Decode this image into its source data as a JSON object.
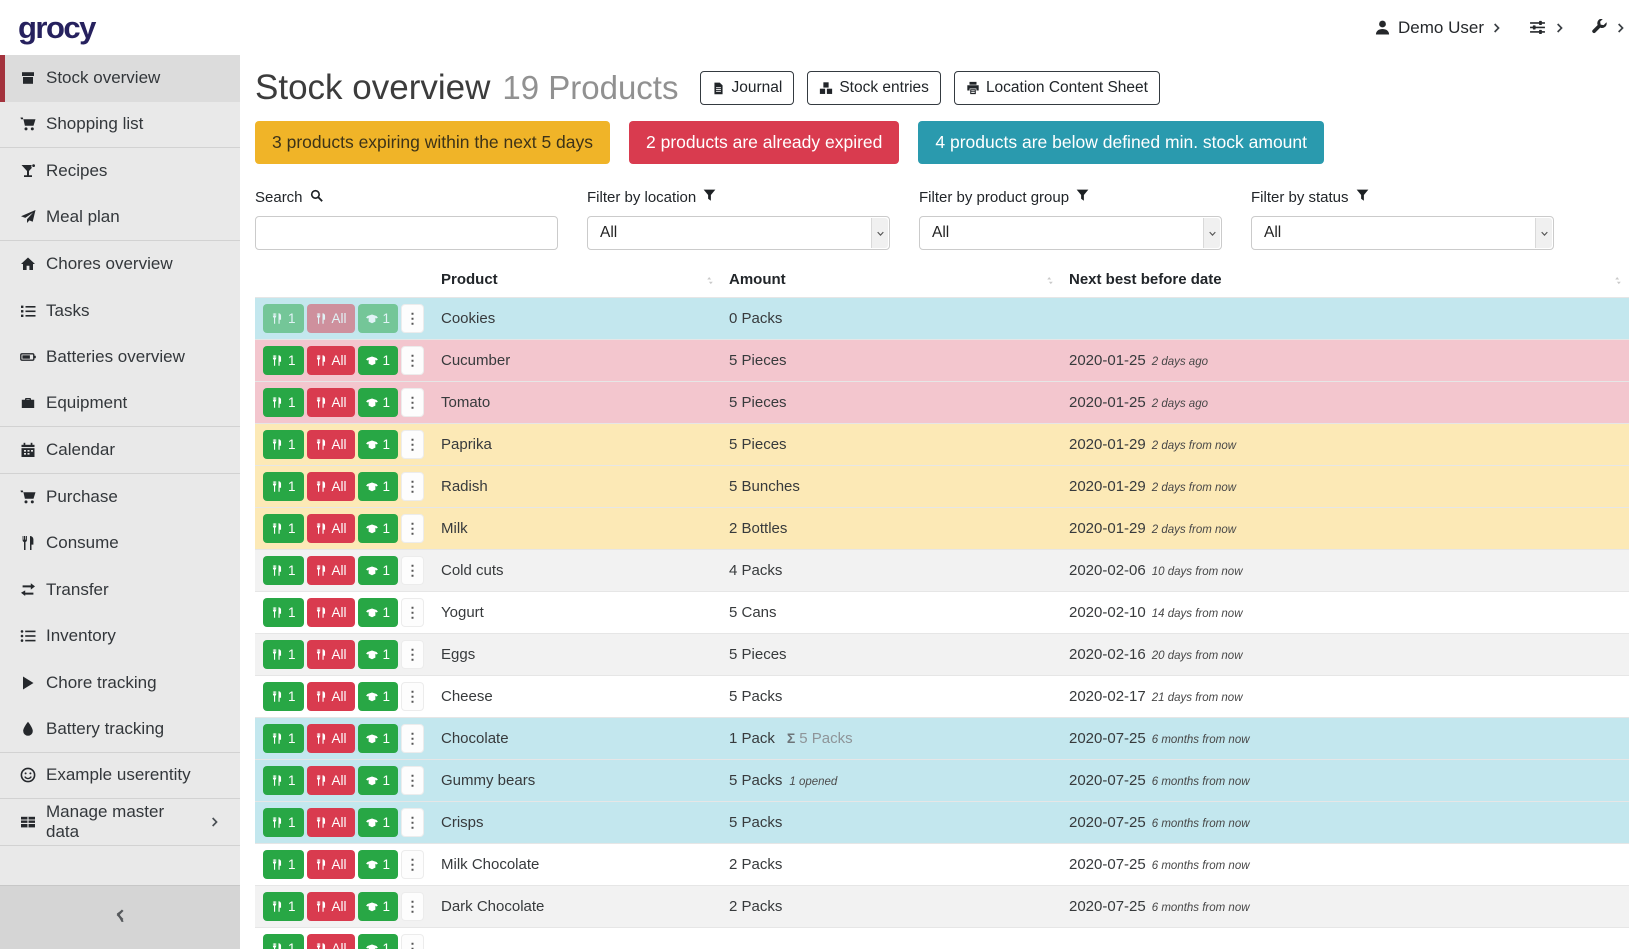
{
  "navbar": {
    "brand": "grocy",
    "user_label": "Demo User"
  },
  "sidebar": {
    "items": [
      {
        "label": "Stock overview",
        "icon": "stock-box",
        "active": true
      },
      {
        "label": "Shopping list",
        "icon": "cart",
        "divider_after": true
      },
      {
        "label": "Recipes",
        "icon": "cocktail"
      },
      {
        "label": "Meal plan",
        "icon": "paper-plane",
        "divider_after": true
      },
      {
        "label": "Chores overview",
        "icon": "home"
      },
      {
        "label": "Tasks",
        "icon": "task-list"
      },
      {
        "label": "Batteries overview",
        "icon": "battery"
      },
      {
        "label": "Equipment",
        "icon": "toolbox",
        "divider_after": true
      },
      {
        "label": "Calendar",
        "icon": "calendar",
        "divider_after": true
      },
      {
        "label": "Purchase",
        "icon": "cart"
      },
      {
        "label": "Consume",
        "icon": "utensils"
      },
      {
        "label": "Transfer",
        "icon": "transfer"
      },
      {
        "label": "Inventory",
        "icon": "list"
      },
      {
        "label": "Chore tracking",
        "icon": "play"
      },
      {
        "label": "Battery tracking",
        "icon": "droplet",
        "divider_after": true
      },
      {
        "label": "Example userentity",
        "icon": "smiley",
        "divider_after": true
      },
      {
        "label": "Manage master data",
        "icon": "table",
        "chevron": true,
        "divider_after": true
      }
    ]
  },
  "page": {
    "title": "Stock overview",
    "subtitle": "19 Products",
    "buttons": [
      {
        "label": "Journal",
        "icon": "file"
      },
      {
        "label": "Stock entries",
        "icon": "boxes"
      },
      {
        "label": "Location Content Sheet",
        "icon": "print"
      }
    ]
  },
  "banners": [
    {
      "text": "3 products expiring within the next 5 days",
      "bg": "#f0b428",
      "fg": "#3d3318"
    },
    {
      "text": "2 products are already expired",
      "bg": "#d93b4f",
      "fg": "#ffffff"
    },
    {
      "text": "4 products are below defined min. stock amount",
      "bg": "#2a9aae",
      "fg": "#ffffff"
    }
  ],
  "filters": {
    "search_label": "Search",
    "search_value": "",
    "location_label": "Filter by location",
    "location_value": "All",
    "group_label": "Filter by product group",
    "group_value": "All",
    "status_label": "Filter by status",
    "status_value": "All"
  },
  "row_actions": {
    "consume_one": "1",
    "consume_all": "All",
    "open_one": "1"
  },
  "table": {
    "columns": [
      "Product",
      "Amount",
      "Next best before date"
    ],
    "rows": [
      {
        "product": "Cookies",
        "amount": "0 Packs",
        "date": "",
        "relative": "",
        "status": "belowmin",
        "disabled": true
      },
      {
        "product": "Cucumber",
        "amount": "5 Pieces",
        "date": "2020-01-25",
        "relative": "2 days ago",
        "status": "expired"
      },
      {
        "product": "Tomato",
        "amount": "5 Pieces",
        "date": "2020-01-25",
        "relative": "2 days ago",
        "status": "expired"
      },
      {
        "product": "Paprika",
        "amount": "5 Pieces",
        "date": "2020-01-29",
        "relative": "2 days from now",
        "status": "expiring"
      },
      {
        "product": "Radish",
        "amount": "5 Bunches",
        "date": "2020-01-29",
        "relative": "2 days from now",
        "status": "expiring"
      },
      {
        "product": "Milk",
        "amount": "2 Bottles",
        "date": "2020-01-29",
        "relative": "2 days from now",
        "status": "expiring"
      },
      {
        "product": "Cold cuts",
        "amount": "4 Packs",
        "date": "2020-02-06",
        "relative": "10 days from now",
        "status": "none"
      },
      {
        "product": "Yogurt",
        "amount": "5 Cans",
        "date": "2020-02-10",
        "relative": "14 days from now",
        "status": "none"
      },
      {
        "product": "Eggs",
        "amount": "5 Pieces",
        "date": "2020-02-16",
        "relative": "20 days from now",
        "status": "none"
      },
      {
        "product": "Cheese",
        "amount": "5 Packs",
        "date": "2020-02-17",
        "relative": "21 days from now",
        "status": "none"
      },
      {
        "product": "Chocolate",
        "amount": "1 Pack",
        "aggregate": "5 Packs",
        "date": "2020-07-25",
        "relative": "6 months from now",
        "status": "belowmin"
      },
      {
        "product": "Gummy bears",
        "amount": "5 Packs",
        "opened": "1 opened",
        "date": "2020-07-25",
        "relative": "6 months from now",
        "status": "belowmin"
      },
      {
        "product": "Crisps",
        "amount": "5 Packs",
        "date": "2020-07-25",
        "relative": "6 months from now",
        "status": "belowmin"
      },
      {
        "product": "Milk Chocolate",
        "amount": "2 Packs",
        "date": "2020-07-25",
        "relative": "6 months from now",
        "status": "none"
      },
      {
        "product": "Dark Chocolate",
        "amount": "2 Packs",
        "date": "2020-07-25",
        "relative": "6 months from now",
        "status": "none"
      },
      {
        "product": "",
        "amount": "",
        "date": "",
        "relative": "",
        "status": "none",
        "partial": true
      }
    ]
  },
  "colors": {
    "accent_red": "#a3333d",
    "logo": "#26215e",
    "btn_green": "#28a745",
    "btn_red": "#d93b4f",
    "row_belowmin": "#c3e7ee",
    "row_expired": "#f3c6ce",
    "row_expiring": "#fce9b6",
    "row_stripe": "#f2f2f2"
  }
}
